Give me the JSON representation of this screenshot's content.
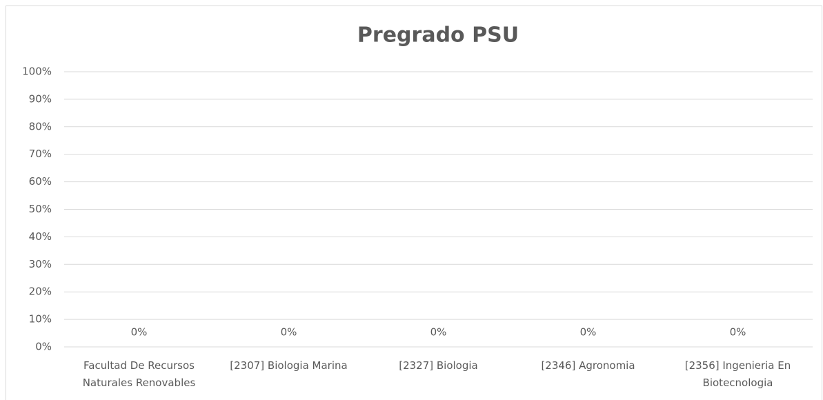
{
  "chart_data": {
    "type": "bar",
    "title": "Pregrado PSU",
    "categories": [
      "Facultad De Recursos Naturales Renovables",
      "[2307] Biologia Marina",
      "[2327] Biologia",
      "[2346] Agronomia",
      "[2356] Ingenieria En Biotecnologia"
    ],
    "values": [
      0,
      0,
      0,
      0,
      0
    ],
    "value_labels": [
      "0%",
      "0%",
      "0%",
      "0%",
      "0%"
    ],
    "color": "#4472c4",
    "ylim": [
      0,
      100
    ],
    "yticks": [
      {
        "value": 0,
        "label": "0%"
      },
      {
        "value": 10,
        "label": "10%"
      },
      {
        "value": 20,
        "label": "20%"
      },
      {
        "value": 30,
        "label": "30%"
      },
      {
        "value": 40,
        "label": "40%"
      },
      {
        "value": 50,
        "label": "50%"
      },
      {
        "value": 60,
        "label": "60%"
      },
      {
        "value": 70,
        "label": "70%"
      },
      {
        "value": 80,
        "label": "80%"
      },
      {
        "value": 90,
        "label": "90%"
      },
      {
        "value": 100,
        "label": "100%"
      }
    ],
    "grid": true
  }
}
